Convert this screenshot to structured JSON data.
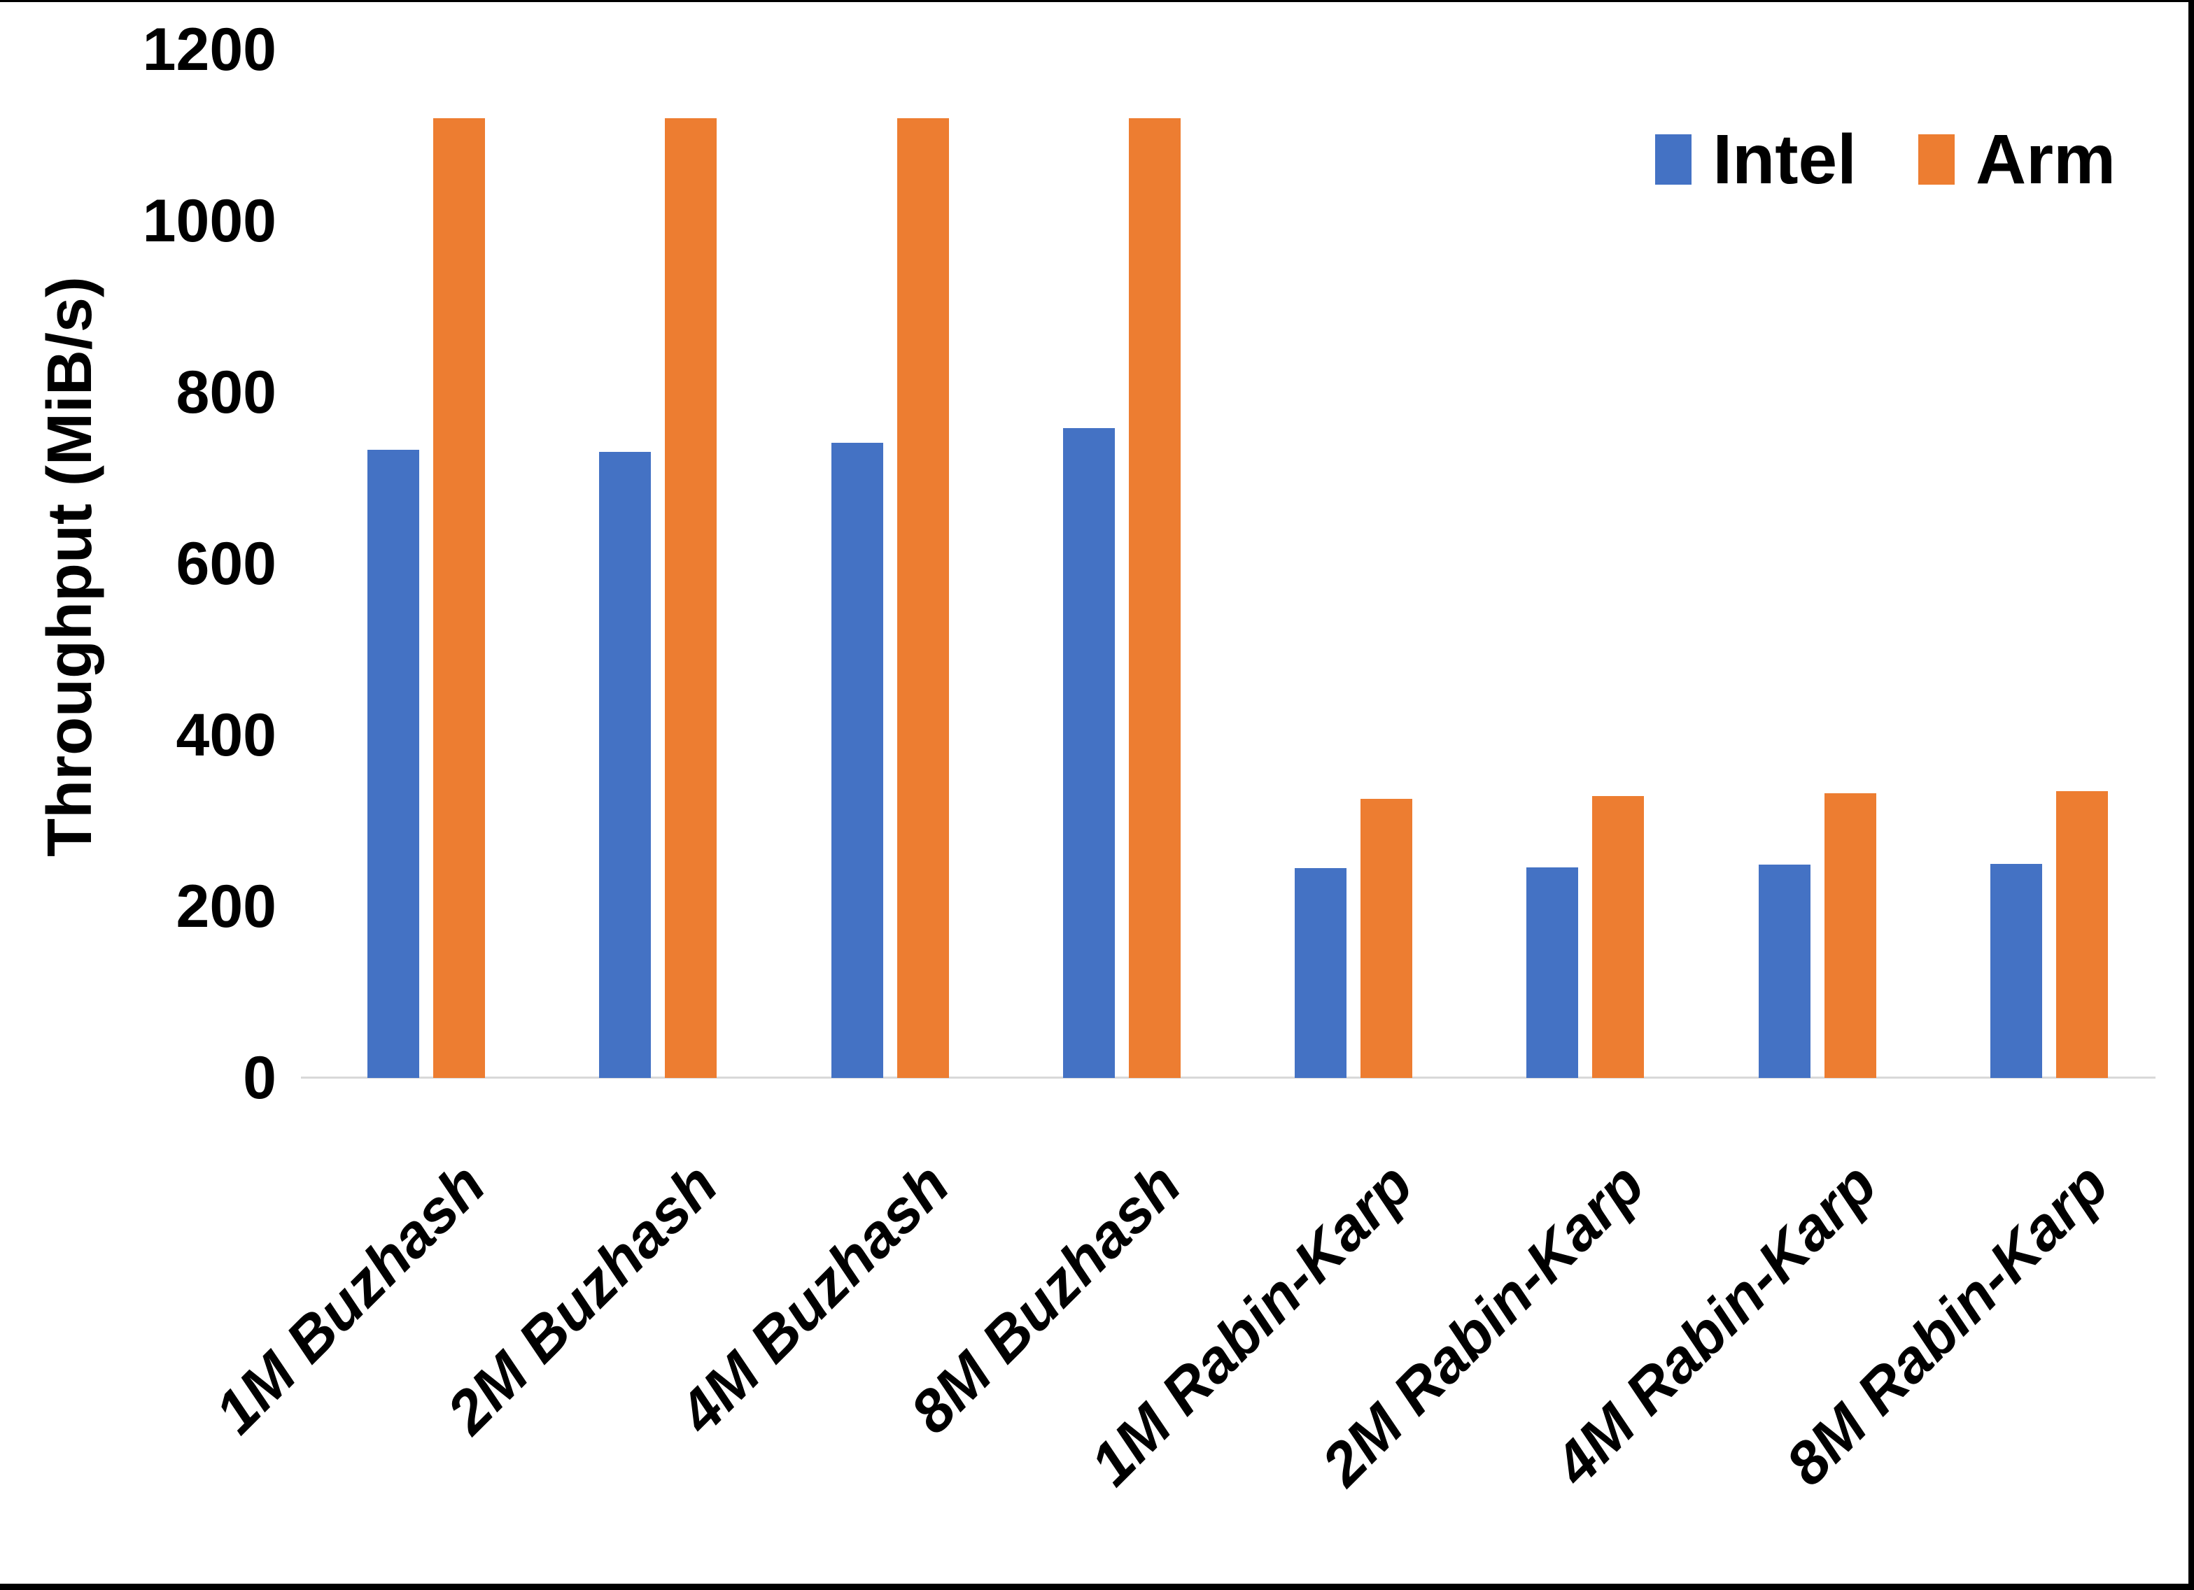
{
  "chart_data": {
    "type": "bar",
    "title": "",
    "xlabel": "",
    "ylabel": "Throughput (MiB/s)",
    "ylim": [
      0,
      1200
    ],
    "yticks": [
      0,
      200,
      400,
      600,
      800,
      1000,
      1200
    ],
    "grid": false,
    "legend_position": "top-right",
    "categories": [
      "1M Buzhash",
      "2M Buzhash",
      "4M Buzhash",
      "8M Buzhash",
      "1M Rabin-Karp",
      "2M Rabin-Karp",
      "4M Rabin-Karp",
      "8M Rabin-Karp"
    ],
    "series": [
      {
        "name": "Intel",
        "color": "#4472C4",
        "values": [
          733,
          731,
          741,
          758,
          245,
          246,
          249,
          250
        ]
      },
      {
        "name": "Arm",
        "color": "#ED7D31",
        "values": [
          1120,
          1120,
          1120,
          1120,
          326,
          329,
          332,
          335
        ]
      }
    ]
  },
  "axes": {
    "y_title": "Throughput (MiB/s)",
    "y_tick_labels": [
      "0",
      "200",
      "400",
      "600",
      "800",
      "1000",
      "1200"
    ]
  },
  "legend": {
    "items": [
      {
        "label": "Intel",
        "color": "#4472C4"
      },
      {
        "label": "Arm",
        "color": "#ED7D31"
      }
    ]
  },
  "colors": {
    "axis_line": "#D9D9D9",
    "background": "#FFFFFF",
    "border": "#000000",
    "text": "#000000",
    "intel": "#4472C4",
    "arm": "#ED7D31"
  }
}
